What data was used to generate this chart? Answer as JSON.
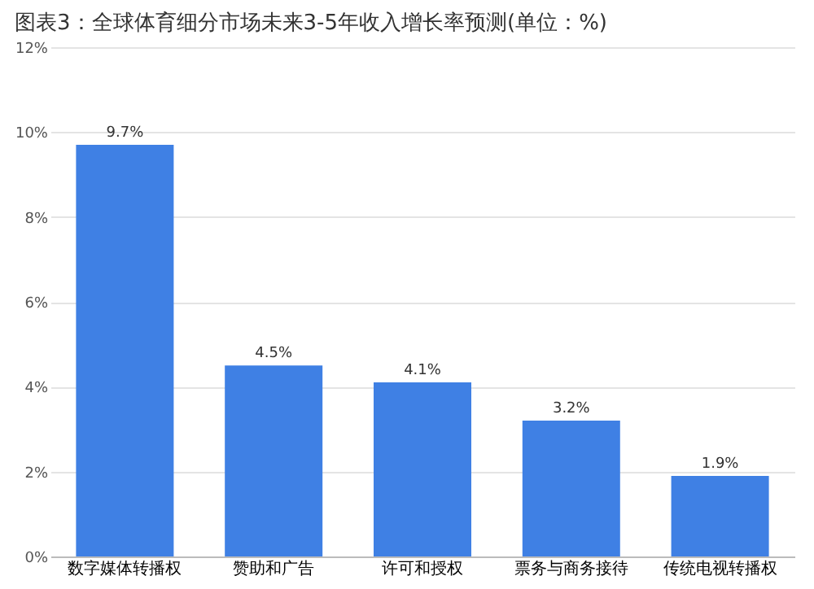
{
  "chart_data": {
    "type": "bar",
    "title": "图表3：全球体育细分市场未来3-5年收入增长率预测(单位：%)",
    "categories": [
      "数字媒体转播权",
      "赞助和广告",
      "许可和授权",
      "票务与商务接待",
      "传统电视转播权"
    ],
    "values": [
      9.7,
      4.5,
      4.1,
      3.2,
      1.9
    ],
    "value_labels": [
      "9.7%",
      "4.5%",
      "4.1%",
      "3.2%",
      "1.9%"
    ],
    "color": "#3f80e4",
    "ylim": [
      0,
      12
    ],
    "yticks": [
      {
        "value": 0,
        "label": "0%"
      },
      {
        "value": 2,
        "label": "2%"
      },
      {
        "value": 4,
        "label": "4%"
      },
      {
        "value": 6,
        "label": "6%"
      },
      {
        "value": 8,
        "label": "8%"
      },
      {
        "value": 10,
        "label": "10%"
      },
      {
        "value": 12,
        "label": "12%"
      }
    ],
    "grid": "y"
  }
}
